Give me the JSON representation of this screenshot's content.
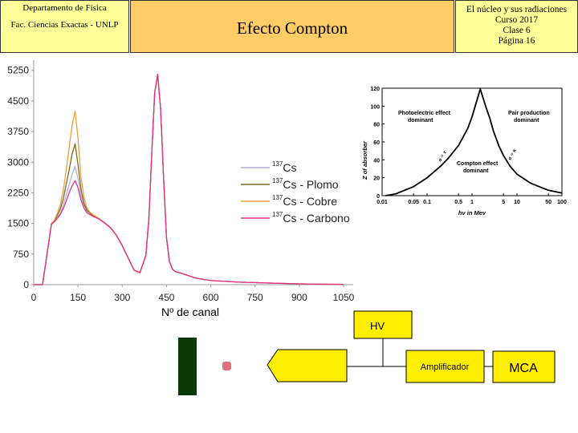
{
  "header": {
    "left_line1": "Departamento de Física",
    "left_line2": "Fac. Ciencias Exactas - UNLP",
    "title": "Efecto Compton",
    "right_line1": "El núcleo y sus radiaciones",
    "right_line2": "Curso 2017",
    "right_line3": "Clase 6",
    "right_line4": "Página 16"
  },
  "colors": {
    "left_header_bg": "#ffff99",
    "title_bg": "#ffcc66",
    "series": [
      "#b0b0d8",
      "#7a6a1a",
      "#e8a040",
      "#e0308a"
    ],
    "detector": "#0a3a0a",
    "source": "#e07080",
    "hv_box": "#ffee00",
    "amp_box": "#ffee00",
    "mca_box": "#ffee00"
  },
  "chart_data": [
    {
      "type": "line",
      "xlabel": "Nº de canal",
      "ylabel": "",
      "xlim": [
        0,
        1050
      ],
      "ylim": [
        0,
        5500
      ],
      "x_ticks": [
        "0",
        "150",
        "300",
        "450",
        "600",
        "750",
        "900",
        "1050"
      ],
      "y_ticks": [
        "0",
        "750",
        "1500",
        "2250",
        "3000",
        "3750",
        "4500",
        "5250"
      ],
      "x": [
        0,
        30,
        60,
        70,
        80,
        90,
        100,
        110,
        120,
        130,
        140,
        150,
        160,
        170,
        180,
        190,
        200,
        220,
        240,
        260,
        280,
        300,
        320,
        340,
        360,
        380,
        390,
        400,
        410,
        420,
        430,
        440,
        450,
        460,
        470,
        480,
        500,
        520,
        550,
        600,
        700,
        800,
        900,
        1000,
        1050
      ],
      "series": [
        {
          "name": "137Cs",
          "mass": "137",
          "label": "Cs",
          "values": [
            0,
            0,
            1500,
            1550,
            1650,
            1750,
            1950,
            2200,
            2450,
            2700,
            2900,
            2600,
            2200,
            1950,
            1800,
            1750,
            1700,
            1620,
            1520,
            1400,
            1220,
            960,
            660,
            360,
            300,
            720,
            1600,
            3200,
            4700,
            5150,
            4300,
            2600,
            1150,
            560,
            380,
            320,
            280,
            230,
            160,
            100,
            60,
            40,
            20,
            10,
            5
          ]
        },
        {
          "name": "137Cs - Plomo",
          "mass": "137",
          "label": "Cs - Plomo",
          "values": [
            0,
            0,
            1500,
            1560,
            1700,
            1850,
            2100,
            2450,
            2800,
            3200,
            3450,
            2950,
            2350,
            2000,
            1820,
            1760,
            1700,
            1620,
            1520,
            1400,
            1220,
            960,
            660,
            360,
            300,
            720,
            1600,
            3200,
            4700,
            5150,
            4300,
            2600,
            1150,
            560,
            380,
            320,
            280,
            230,
            160,
            100,
            60,
            40,
            20,
            10,
            5
          ]
        },
        {
          "name": "137Cs - Cobre",
          "mass": "137",
          "label": "Cs - Cobre",
          "values": [
            0,
            0,
            1500,
            1580,
            1750,
            1950,
            2300,
            2800,
            3350,
            3900,
            4250,
            3600,
            2650,
            2150,
            1880,
            1780,
            1720,
            1630,
            1520,
            1400,
            1220,
            960,
            660,
            360,
            300,
            720,
            1600,
            3200,
            4700,
            5150,
            4300,
            2600,
            1150,
            560,
            380,
            320,
            280,
            230,
            160,
            100,
            60,
            40,
            20,
            10,
            5
          ]
        },
        {
          "name": "137Cs - Carbono",
          "mass": "137",
          "label": "Cs - Carbono",
          "values": [
            0,
            0,
            1480,
            1540,
            1620,
            1720,
            1860,
            2050,
            2250,
            2420,
            2550,
            2380,
            2080,
            1880,
            1760,
            1720,
            1680,
            1610,
            1510,
            1390,
            1210,
            950,
            650,
            350,
            290,
            710,
            1600,
            3200,
            4700,
            5150,
            4300,
            2600,
            1150,
            560,
            380,
            320,
            280,
            230,
            160,
            100,
            60,
            40,
            20,
            10,
            5
          ]
        }
      ]
    },
    {
      "type": "line",
      "xlabel": "hν in Mev",
      "ylabel": "Z of absorber",
      "xscale": "log",
      "xlim": [
        0.01,
        100
      ],
      "ylim": [
        0,
        120
      ],
      "x_ticks": [
        "0.01",
        "0.05",
        "0.1",
        "0.5",
        "1",
        "5",
        "10",
        "50",
        "100"
      ],
      "y_ticks": [
        "0",
        "20",
        "40",
        "60",
        "80",
        "100",
        "120"
      ],
      "annotations": [
        "Photoelectric effect dominant",
        "Pair production dominant",
        "Compton effect dominant",
        "σ = τ",
        "σ = κ"
      ],
      "curves": [
        {
          "name": "σ = τ",
          "x": [
            0.012,
            0.02,
            0.05,
            0.1,
            0.2,
            0.3,
            0.5,
            0.8,
            1.0,
            1.5
          ],
          "y": [
            0,
            2,
            10,
            20,
            33,
            42,
            56,
            75,
            88,
            118
          ]
        },
        {
          "name": "σ = κ",
          "x": [
            1.5,
            2.0,
            2.5,
            3,
            4,
            5,
            7,
            10,
            20,
            50,
            100
          ],
          "y": [
            120,
            100,
            86,
            72,
            55,
            45,
            33,
            24,
            14,
            6,
            3
          ]
        }
      ]
    }
  ],
  "legend": {
    "items": [
      {
        "sup": "137",
        "text": "Cs"
      },
      {
        "sup": "137",
        "text": "Cs - Plomo"
      },
      {
        "sup": "137",
        "text": "Cs - Cobre"
      },
      {
        "sup": "137",
        "text": "Cs - Carbono"
      }
    ]
  },
  "setup": {
    "hv": "HV",
    "amplifier": "Amplificador",
    "mca": "MCA"
  }
}
